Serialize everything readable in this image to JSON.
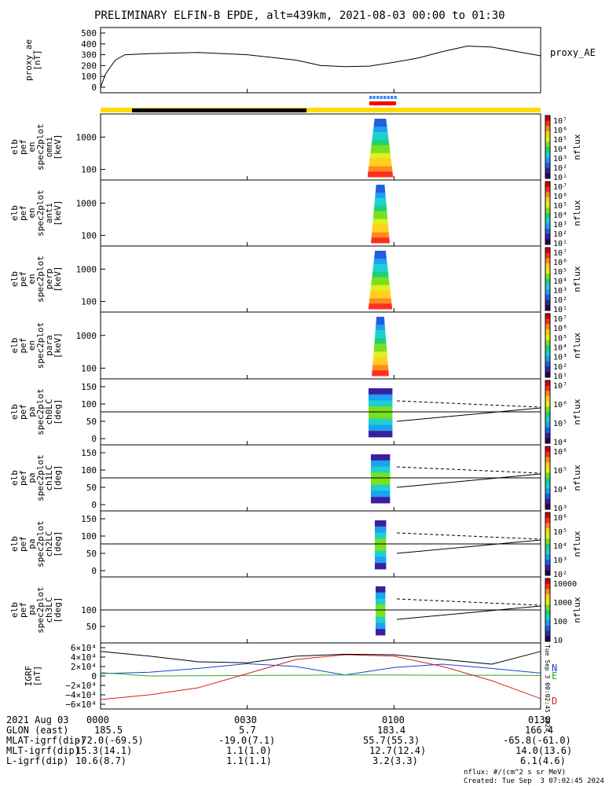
{
  "title": "PRELIMINARY ELFIN-B EPDE, alt=439km, 2021-08-03 00:00 to 01:30",
  "colors": {
    "axis": "#000000",
    "state_bar_yellow": "#ffdd00",
    "state_bar_black": "#000000",
    "science_zone_blue": "#3a8cff",
    "science_zone_red": "#ff0000",
    "igrf_black": "#000000",
    "igrf_blue": "#1f3fcf",
    "igrf_green": "#1faf1f",
    "igrf_red": "#d41f1f",
    "colormap": [
      "#2a0052",
      "#3a1fa0",
      "#1f5fe0",
      "#1fa0f0",
      "#1fd0d0",
      "#1fd07a",
      "#7ae01f",
      "#e0f01f",
      "#ffd01f",
      "#ff8a1f",
      "#ff2f1f",
      "#d00000"
    ]
  },
  "panels": [
    {
      "id": "proxy_ae",
      "ylabel": [
        "proxy_ae",
        "[nT]"
      ],
      "right_label": "proxy_AE",
      "yticks": [
        "500",
        "400",
        "300",
        "200",
        "100",
        "0"
      ]
    },
    {
      "id": "omni",
      "ylabel": [
        "elb",
        "pef",
        "en",
        "spec2plot",
        "omni",
        "[keV]"
      ],
      "yticks": [
        "1000",
        "100"
      ],
      "cb_label": "nflux",
      "cb_ticks": [
        "10⁷",
        "10⁶",
        "10⁵",
        "10⁴",
        "10³",
        "10²",
        "10¹"
      ]
    },
    {
      "id": "anti",
      "ylabel": [
        "elb",
        "pef",
        "en",
        "spec2plot",
        "anti",
        "[keV]"
      ],
      "yticks": [
        "1000",
        "100"
      ],
      "cb_label": "nflux",
      "cb_ticks": [
        "10⁷",
        "10⁶",
        "10⁵",
        "10⁴",
        "10³",
        "10²",
        "10¹"
      ]
    },
    {
      "id": "perp",
      "ylabel": [
        "elb",
        "pef",
        "en",
        "spec2plot",
        "perp",
        "[keV]"
      ],
      "yticks": [
        "1000",
        "100"
      ],
      "cb_label": "nflux",
      "cb_ticks": [
        "10⁷",
        "10⁶",
        "10⁵",
        "10⁴",
        "10³",
        "10²",
        "10¹"
      ]
    },
    {
      "id": "para",
      "ylabel": [
        "elb",
        "pef",
        "en",
        "spec2plot",
        "para",
        "[keV]"
      ],
      "yticks": [
        "1000",
        "100"
      ],
      "cb_label": "nflux",
      "cb_ticks": [
        "10⁷",
        "10⁶",
        "10⁵",
        "10⁴",
        "10³",
        "10²",
        "10¹"
      ]
    },
    {
      "id": "ch0LC",
      "ylabel": [
        "elb",
        "pef",
        "pa",
        "spec2plot",
        "ch0LC",
        "[deg]"
      ],
      "yticks": [
        "150",
        "100",
        "50",
        "0"
      ],
      "cb_label": "nflux",
      "cb_ticks": [
        "10⁷",
        "10⁶",
        "10⁵",
        "10⁴"
      ]
    },
    {
      "id": "ch1LC",
      "ylabel": [
        "elb",
        "pef",
        "pa",
        "spec2plot",
        "ch1LC",
        "[deg]"
      ],
      "yticks": [
        "150",
        "100",
        "50",
        "0"
      ],
      "cb_label": "nflux",
      "cb_ticks": [
        "10⁶",
        "10⁵",
        "10⁴",
        "10³"
      ]
    },
    {
      "id": "ch2LC",
      "ylabel": [
        "elb",
        "pef",
        "pa",
        "spec2plot",
        "ch2LC",
        "[deg]"
      ],
      "yticks": [
        "150",
        "100",
        "50",
        "0"
      ],
      "cb_label": "nflux",
      "cb_ticks": [
        "10⁶",
        "10⁵",
        "10⁴",
        "10³",
        "10²"
      ]
    },
    {
      "id": "ch3LC",
      "ylabel": [
        "elb",
        "pef",
        "pa",
        "spec2plot",
        "ch3LC",
        "[deg]"
      ],
      "yticks": [
        "100",
        "50"
      ],
      "cb_label": "nflux",
      "cb_ticks": [
        "10000",
        "1000",
        "100",
        "10"
      ]
    },
    {
      "id": "igrf",
      "ylabel": [
        "IGRF",
        "[nT]"
      ],
      "yticks": [
        "6×10⁴",
        "4×10⁴",
        "2×10⁴",
        "0",
        "−2×10⁴",
        "−4×10⁴",
        "−6×10⁴"
      ],
      "legend": [
        "N",
        "E",
        "D"
      ],
      "side_note": "Tue Sep  3 00:02:45 2024"
    }
  ],
  "chart_data": [
    {
      "type": "line",
      "panel": "proxy_ae",
      "title": "",
      "xlabel": "",
      "ylabel": "proxy_ae [nT]",
      "ylim": [
        0,
        500
      ],
      "x": [
        "00:00",
        "00:01",
        "00:03",
        "00:05",
        "00:10",
        "00:20",
        "00:30",
        "00:40",
        "00:45",
        "00:50",
        "00:55",
        "01:00",
        "01:05",
        "01:10",
        "01:15",
        "01:20",
        "01:25",
        "01:30"
      ],
      "values": [
        0,
        120,
        250,
        300,
        310,
        320,
        300,
        250,
        200,
        190,
        195,
        230,
        270,
        330,
        380,
        370,
        330,
        290
      ],
      "series_name": "proxy_AE"
    },
    {
      "type": "line",
      "panel": "igrf",
      "xlabel": "",
      "ylabel": "IGRF [nT]",
      "ylim": [
        -60000,
        60000
      ],
      "x": [
        "00:00",
        "00:10",
        "00:20",
        "00:30",
        "00:40",
        "00:50",
        "01:00",
        "01:10",
        "01:20",
        "01:30"
      ],
      "series": [
        {
          "name": "N",
          "color": "blue",
          "values": [
            5000,
            8000,
            16000,
            26000,
            20000,
            2000,
            18000,
            25000,
            16000,
            6000
          ]
        },
        {
          "name": "E",
          "color": "green",
          "values": [
            7000,
            0,
            500,
            1000,
            1500,
            2000,
            2000,
            1500,
            1500,
            1000
          ]
        },
        {
          "name": "D",
          "color": "red",
          "values": [
            -50000,
            -40000,
            -25000,
            5000,
            35000,
            45000,
            42000,
            20000,
            -10000,
            -48000
          ]
        },
        {
          "name": "total",
          "color": "black",
          "values": [
            52000,
            42000,
            30000,
            28000,
            42000,
            46000,
            45000,
            35000,
            25000,
            52000
          ]
        }
      ]
    }
  ],
  "xaxis": {
    "date": "2021 Aug 03",
    "ticks": [
      "0000",
      "0030",
      "0100",
      "0130"
    ],
    "rows": [
      {
        "label": "GLON (east)",
        "values": [
          "185.5",
          "5.7",
          "183.4",
          "166.4"
        ]
      },
      {
        "label": "MLAT-igrf(dip)",
        "values": [
          "-72.0(-69.5)",
          "-19.0(7.1)",
          "55.7(55.3)",
          "-65.8(-61.0)"
        ]
      },
      {
        "label": "MLT-igrf(dip)",
        "values": [
          "15.3(14.1)",
          "1.1(1.0)",
          "12.7(12.4)",
          "14.0(13.6)"
        ]
      },
      {
        "label": "L-igrf(dip)",
        "values": [
          "10.6(8.7)",
          "1.1(1.1)",
          "3.2(3.3)",
          "6.1(4.6)"
        ]
      }
    ]
  },
  "footer": {
    "units": "nflux: #/(cm^2 s sr MeV)",
    "created": "Created: Tue Sep  3 07:02:45 2024"
  }
}
